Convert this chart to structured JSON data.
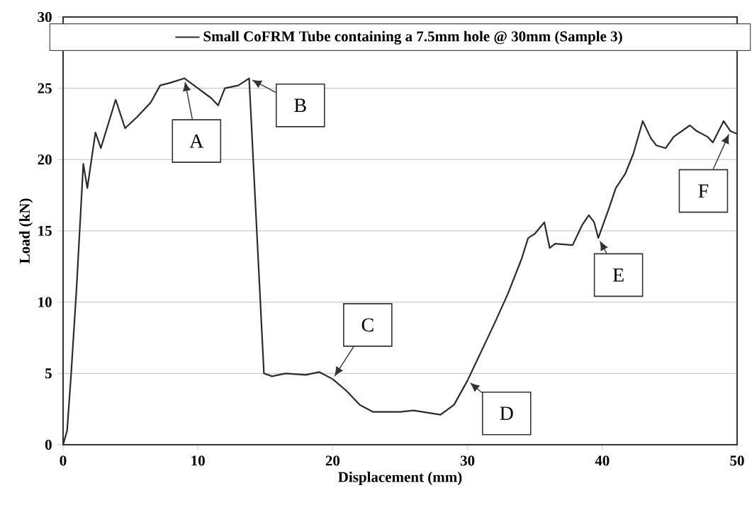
{
  "chart_data": {
    "type": "line",
    "xlabel": "Displacement (mm)",
    "ylabel": "Load (kN)",
    "x": [
      0,
      0.3,
      0.6,
      1.0,
      1.5,
      1.8,
      2.4,
      2.8,
      3.9,
      4.6,
      5.5,
      6.5,
      7.2,
      8,
      9.0,
      10,
      11,
      11.5,
      12,
      13,
      13.8,
      14.9,
      15.5,
      16.5,
      18,
      19,
      20,
      21,
      22,
      23,
      25,
      26,
      28,
      29,
      30,
      31,
      32,
      33,
      34,
      34.5,
      35,
      35.7,
      36.1,
      36.5,
      37.8,
      38.5,
      39,
      39.4,
      39.7,
      40.5,
      41,
      41.7,
      42.3,
      43,
      43.6,
      44,
      44.7,
      45.3,
      46.5,
      47,
      47.8,
      48.2,
      49,
      49.5,
      50
    ],
    "series": [
      {
        "name": "Small CoFRM Tube containing a 7.5mm hole @ 30mm (Sample 3)",
        "color": "#2b2b2b",
        "values": [
          0,
          1,
          5,
          11,
          19.7,
          18.0,
          21.9,
          20.8,
          24.2,
          22.2,
          23.0,
          24.0,
          25.2,
          25.4,
          25.7,
          25.0,
          24.3,
          23.8,
          25.0,
          25.2,
          25.7,
          5.0,
          4.8,
          5.0,
          4.9,
          5.1,
          4.6,
          3.8,
          2.8,
          2.3,
          2.3,
          2.4,
          2.1,
          2.8,
          4.5,
          6.5,
          8.5,
          10.6,
          13.0,
          14.5,
          14.8,
          15.6,
          13.8,
          14.1,
          14.0,
          15.4,
          16.1,
          15.6,
          14.5,
          16.6,
          18.0,
          19.0,
          20.4,
          22.7,
          21.5,
          21.0,
          20.8,
          21.6,
          22.4,
          22.0,
          21.6,
          21.2,
          22.7,
          22.0,
          21.8
        ]
      }
    ],
    "xlim": [
      0,
      50
    ],
    "ylim": [
      0,
      30
    ],
    "xticks": [
      0,
      10,
      20,
      30,
      40,
      50
    ],
    "yticks": [
      0,
      5,
      10,
      15,
      20,
      25,
      30
    ],
    "grid": "y",
    "legend": "top",
    "annotations": [
      {
        "text": "A",
        "x": 9.0,
        "y": 25.7
      },
      {
        "text": "B",
        "x": 13.8,
        "y": 25.7
      },
      {
        "text": "C",
        "x": 20,
        "y": 4.6
      },
      {
        "text": "D",
        "x": 30,
        "y": 4.5
      },
      {
        "text": "E",
        "x": 39.7,
        "y": 14.5
      },
      {
        "text": "F",
        "x": 49.5,
        "y": 22.0
      }
    ]
  }
}
